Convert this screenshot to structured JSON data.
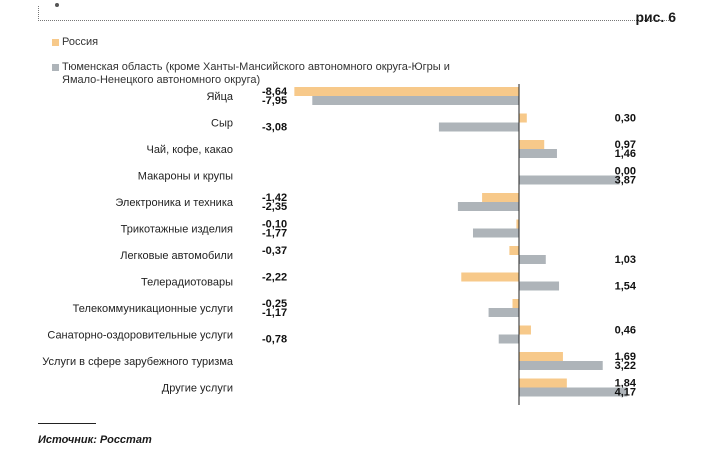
{
  "figure_label": "рис. 6",
  "source": "Источник: Росстат",
  "colors": {
    "russia": "#F7C98A",
    "tyumen": "#AEB4B9"
  },
  "chart_data": {
    "type": "bar",
    "orientation": "horizontal",
    "categories": [
      "Яйца",
      "Сыр",
      "Чай, кофе, какао",
      "Макароны и крупы",
      "Электроника и техника",
      "Трикотажные изделия",
      "Легковые автомобили",
      "Телерадиотовары",
      "Телекоммуникационные услуги",
      "Санаторно-оздоровительные услуги",
      "Услуги в сфере зарубежного туризма",
      "Другие услуги"
    ],
    "series": [
      {
        "name": "Россия",
        "color": "#F7C98A",
        "values": [
          -8.64,
          0.3,
          0.97,
          0.0,
          -1.42,
          -0.1,
          -0.37,
          -2.22,
          -0.25,
          0.46,
          1.69,
          1.84
        ],
        "labels": [
          "-8,64",
          "0,30",
          "0,97",
          "0,00",
          "-1,42",
          "-0,10",
          "-0,37",
          "-2,22",
          "-0,25",
          "0,46",
          "1,69",
          "1,84"
        ]
      },
      {
        "name": "Тюменская область (кроме Ханты-Мансийского автономного округа-Югры и Ямало-Ненецкого автономного округа)",
        "color": "#AEB4B9",
        "values": [
          -7.95,
          -3.08,
          1.46,
          3.87,
          -2.35,
          -1.77,
          1.03,
          1.54,
          -1.17,
          -0.78,
          3.22,
          4.17
        ],
        "labels": [
          "-7,95",
          "-3,08",
          "1,46",
          "3,87",
          "-2,35",
          "-1,77",
          "1,03",
          "1,54",
          "-1,17",
          "-0,78",
          "3,22",
          "4,17"
        ]
      }
    ],
    "legend_position": "top-left",
    "grid": false,
    "xlim": [
      -8.64,
      4.17
    ]
  }
}
